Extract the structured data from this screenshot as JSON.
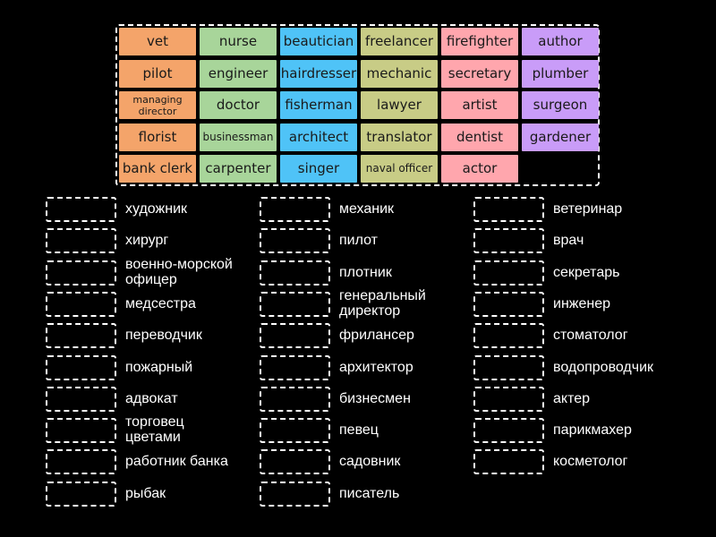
{
  "tiles": [
    {
      "label": "vet",
      "color": "orange"
    },
    {
      "label": "nurse",
      "color": "green"
    },
    {
      "label": "beautician",
      "color": "blue"
    },
    {
      "label": "freelancer",
      "color": "olive"
    },
    {
      "label": "firefighter",
      "color": "pink"
    },
    {
      "label": "author",
      "color": "purple"
    },
    {
      "label": "pilot",
      "color": "orange"
    },
    {
      "label": "engineer",
      "color": "green"
    },
    {
      "label": "hairdresser",
      "color": "blue"
    },
    {
      "label": "mechanic",
      "color": "olive"
    },
    {
      "label": "secretary",
      "color": "pink"
    },
    {
      "label": "plumber",
      "color": "purple"
    },
    {
      "label": "managing director",
      "color": "orange"
    },
    {
      "label": "doctor",
      "color": "green"
    },
    {
      "label": "fisherman",
      "color": "blue"
    },
    {
      "label": "lawyer",
      "color": "olive"
    },
    {
      "label": "artist",
      "color": "pink"
    },
    {
      "label": "surgeon",
      "color": "purple"
    },
    {
      "label": "florist",
      "color": "orange"
    },
    {
      "label": "businessman",
      "color": "green"
    },
    {
      "label": "architect",
      "color": "blue"
    },
    {
      "label": "translator",
      "color": "olive"
    },
    {
      "label": "dentist",
      "color": "pink"
    },
    {
      "label": "gardener",
      "color": "purple"
    },
    {
      "label": "bank clerk",
      "color": "orange"
    },
    {
      "label": "carpenter",
      "color": "green"
    },
    {
      "label": "singer",
      "color": "blue"
    },
    {
      "label": "naval officer",
      "color": "olive"
    },
    {
      "label": "actor",
      "color": "pink"
    }
  ],
  "tile_colors": {
    "orange": "#f4a46a",
    "green": "#a8d59a",
    "blue": "#4fc3f7",
    "olive": "#c8cc86",
    "pink": "#ffa6ad",
    "purple": "#c99cf8"
  },
  "clues": [
    [
      "художник",
      "хирург",
      "военно-морской\nофицер",
      "медсестра",
      "переводчик",
      "пожарный",
      "адвокат",
      "торговец\nцветами",
      "работник банка",
      "рыбак"
    ],
    [
      "механик",
      "пилот",
      "плотник",
      "генеральный\nдиректор",
      "фрилансер",
      "архитектор",
      "бизнесмен",
      "певец",
      "садовник",
      "писатель"
    ],
    [
      "ветеринар",
      "врач",
      "секретарь",
      "инженер",
      "стоматолог",
      "водопроводчик",
      "актер",
      "парикмахер",
      "косметолог"
    ]
  ]
}
